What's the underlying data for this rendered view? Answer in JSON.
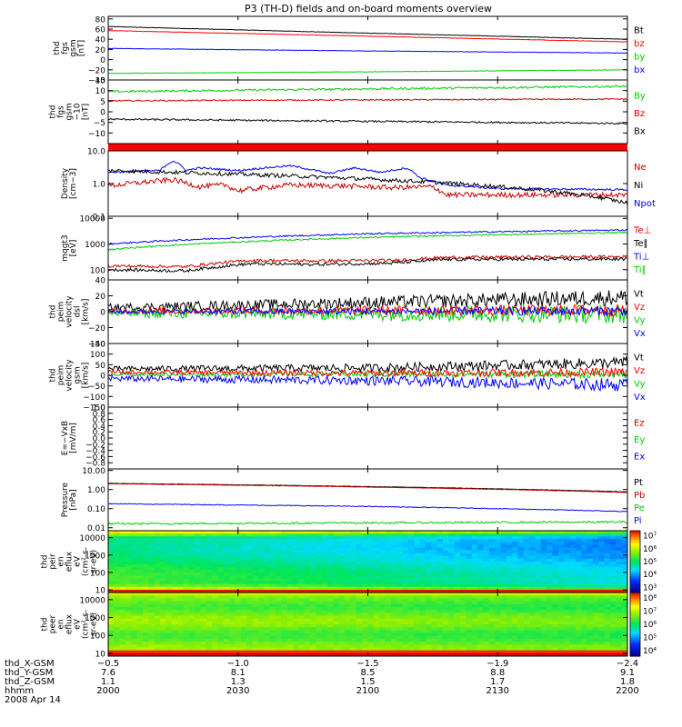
{
  "chart_data": {
    "type": "line",
    "title": "P3 (TH-D) fields and on-board moments overview",
    "panels": [
      {
        "id": "fgs-gsm",
        "ylabel": [
          "thd",
          "fgs",
          "gsm",
          "[nT]"
        ],
        "ylim": [
          -40,
          85
        ],
        "scale": "linear",
        "yticks": [
          "80",
          "60",
          "40",
          "20",
          "0",
          "−20",
          "−40"
        ],
        "ytick_values": [
          80,
          60,
          40,
          20,
          0,
          -20,
          -40
        ],
        "legend": [
          {
            "label": "Bt",
            "color": "#000000"
          },
          {
            "label": "bz",
            "color": "#ff0000"
          },
          {
            "label": "by",
            "color": "#00cc00"
          },
          {
            "label": "bx",
            "color": "#0000ff"
          }
        ],
        "series": [
          {
            "label": "Bt",
            "color": "#000000",
            "x": [
              2000,
              2100,
              2200
            ],
            "y": [
              65,
              52,
              40
            ],
            "noise": 0.4
          },
          {
            "label": "bz",
            "color": "#ff0000",
            "x": [
              2000,
              2100,
              2200
            ],
            "y": [
              57,
              46,
              35
            ],
            "noise": 0.4
          },
          {
            "label": "bx",
            "color": "#0000ff",
            "x": [
              2000,
              2100,
              2200
            ],
            "y": [
              22,
              17,
              13
            ],
            "noise": 0.4
          },
          {
            "label": "by",
            "color": "#00cc00",
            "x": [
              2000,
              2100,
              2200
            ],
            "y": [
              -27,
              -24,
              -20
            ],
            "noise": 0.4
          }
        ]
      },
      {
        "id": "fgs-gse",
        "ylabel": [
          "thd",
          "fgs",
          "gsm",
          "−10",
          "[nT]"
        ],
        "ylim": [
          -15,
          15
        ],
        "scale": "linear",
        "yticks": [
          "15",
          "10",
          "5",
          "0",
          "−5",
          "−10"
        ],
        "ytick_values": [
          15,
          10,
          5,
          0,
          -5,
          -10
        ],
        "legend": [
          {
            "label": "By",
            "color": "#00cc00"
          },
          {
            "label": "Bz",
            "color": "#cc0000"
          },
          {
            "label": "Bx",
            "color": "#000000"
          }
        ],
        "series": [
          {
            "label": "By",
            "color": "#00cc00",
            "x": [
              2000,
              2100,
              2200
            ],
            "y": [
              9.5,
              10.8,
              12
            ],
            "noise": 0.5
          },
          {
            "label": "Bz",
            "color": "#cc0000",
            "x": [
              2000,
              2100,
              2200
            ],
            "y": [
              5.2,
              5.6,
              6
            ],
            "noise": 0.3
          },
          {
            "label": "Bx",
            "color": "#000000",
            "x": [
              2000,
              2100,
              2200
            ],
            "y": [
              -3.5,
              -4.5,
              -5.5
            ],
            "noise": 0.4
          }
        ]
      },
      {
        "id": "density",
        "ylabel": [
          "Density",
          "[cm−3]"
        ],
        "ylim": [
          0.1,
          10
        ],
        "scale": "log",
        "yticks": [
          "10.0",
          "1.0",
          "0.1"
        ],
        "ytick_values": [
          10,
          1,
          0.1
        ],
        "legend": [
          {
            "label": "Ne",
            "color": "#cc0000"
          },
          {
            "label": "Ni",
            "color": "#000000"
          },
          {
            "label": "Npot",
            "color": "#0000ff"
          }
        ],
        "series": [
          {
            "label": "Npot",
            "color": "#0000ff",
            "x": [
              2000,
              2020,
              2025,
              2030,
              2035,
              2050,
              2070,
              2085,
              2095,
              2105,
              2115,
              2120,
              2130,
              2150,
              2200
            ],
            "y": [
              2.2,
              2.5,
              5,
              2.5,
              3,
              2.5,
              3.5,
              2,
              3,
              2.2,
              3,
              1.5,
              0.9,
              0.7,
              0.65
            ],
            "noise": 0.03
          },
          {
            "label": "Ne",
            "color": "#cc0000",
            "x": [
              2000,
              2025,
              2035,
              2045,
              2050,
              2070,
              2090,
              2110,
              2125,
              2130,
              2200
            ],
            "y": [
              0.85,
              1.3,
              0.8,
              0.9,
              0.6,
              0.9,
              0.85,
              0.75,
              0.8,
              0.45,
              0.45
            ],
            "noise": 0.08
          },
          {
            "label": "Ni",
            "color": "#000000",
            "x": [
              2000,
              2200
            ],
            "y": [
              2.5,
              0.25
            ],
            "noise": 0.06
          }
        ]
      },
      {
        "id": "temperature",
        "ylabel": [
          "mqgt3",
          "[eV]"
        ],
        "ylim": [
          40,
          12000
        ],
        "scale": "log",
        "yticks": [
          "10000",
          "1000",
          "100"
        ],
        "ytick_values": [
          10000,
          1000,
          100
        ],
        "legend": [
          {
            "label": "Te⊥",
            "color": "#cc0000"
          },
          {
            "label": "Te∥",
            "color": "#000000"
          },
          {
            "label": "Ti⊥",
            "color": "#0000ff"
          },
          {
            "label": "Ti∥",
            "color": "#00cc00"
          }
        ],
        "series": [
          {
            "label": "Ti⊥",
            "color": "#0000ff",
            "x": [
              2000,
              2100,
              2200
            ],
            "y": [
              1000,
              2500,
              3500
            ],
            "noise": 0.03
          },
          {
            "label": "Ti∥",
            "color": "#00cc00",
            "x": [
              2000,
              2100,
              2200
            ],
            "y": [
              600,
              1800,
              2800
            ],
            "noise": 0.03
          },
          {
            "label": "Te⊥",
            "color": "#cc0000",
            "x": [
              2000,
              2030,
              2055,
              2080,
              2110,
              2130,
              2200
            ],
            "y": [
              140,
              130,
              230,
              220,
              230,
              300,
              320
            ],
            "noise": 0.06
          },
          {
            "label": "Te∥",
            "color": "#000000",
            "x": [
              2000,
              2030,
              2055,
              2080,
              2110,
              2130,
              2200
            ],
            "y": [
              100,
              90,
              170,
              160,
              180,
              250,
              260
            ],
            "noise": 0.06
          }
        ]
      },
      {
        "id": "velocity-dsl",
        "ylabel": [
          "thd",
          "peim",
          "velocity",
          "dsl",
          "[km/s]"
        ],
        "ylim": [
          -40,
          40
        ],
        "scale": "linear",
        "yticks": [
          "40",
          "20",
          "0",
          "−20",
          "−40"
        ],
        "ytick_values": [
          40,
          20,
          0,
          -20,
          -40
        ],
        "legend": [
          {
            "label": "Vt",
            "color": "#000000"
          },
          {
            "label": "Vz",
            "color": "#ff0000"
          },
          {
            "label": "Vy",
            "color": "#00cc00"
          },
          {
            "label": "Vx",
            "color": "#0000ff"
          }
        ],
        "series": [
          {
            "label": "Vt",
            "color": "#000000",
            "x": [
              2000,
              2200
            ],
            "y": [
              5,
              18
            ],
            "noise": 7
          },
          {
            "label": "Vy",
            "color": "#00cc00",
            "x": [
              2000,
              2200
            ],
            "y": [
              -2,
              -3
            ],
            "noise": 8
          },
          {
            "label": "Vz",
            "color": "#ff0000",
            "x": [
              2000,
              2200
            ],
            "y": [
              1,
              2
            ],
            "noise": 5
          },
          {
            "label": "Vx",
            "color": "#0000ff",
            "x": [
              2000,
              2200
            ],
            "y": [
              0,
              1
            ],
            "noise": 4
          }
        ]
      },
      {
        "id": "velocity-gsm",
        "ylabel": [
          "thd",
          "peim",
          "velocity",
          "gsm",
          "[km/s]"
        ],
        "ylim": [
          -150,
          150
        ],
        "scale": "linear",
        "yticks": [
          "150",
          "100",
          "50",
          "0",
          "−50",
          "−100",
          "−150"
        ],
        "ytick_values": [
          150,
          100,
          50,
          0,
          -50,
          -100,
          -150
        ],
        "legend": [
          {
            "label": "Vt",
            "color": "#000000"
          },
          {
            "label": "Vz",
            "color": "#ff0000"
          },
          {
            "label": "Vy",
            "color": "#00cc00"
          },
          {
            "label": "Vx",
            "color": "#0000ff"
          }
        ],
        "series": [
          {
            "label": "Vt",
            "color": "#000000",
            "x": [
              2000,
              2100,
              2200
            ],
            "y": [
              30,
              35,
              60
            ],
            "noise": 18
          },
          {
            "label": "Vx",
            "color": "#0000ff",
            "x": [
              2000,
              2100,
              2200
            ],
            "y": [
              -15,
              -25,
              -45
            ],
            "noise": 20
          },
          {
            "label": "Vy",
            "color": "#00cc00",
            "x": [
              2000,
              2100,
              2200
            ],
            "y": [
              5,
              5,
              5
            ],
            "noise": 12
          },
          {
            "label": "Vz",
            "color": "#ff0000",
            "x": [
              2000,
              2100,
              2200
            ],
            "y": [
              15,
              10,
              15
            ],
            "noise": 14
          }
        ]
      },
      {
        "id": "efield",
        "ylabel": [
          "E=−VxB",
          "[mV/m]"
        ],
        "ylim": [
          -1,
          1
        ],
        "scale": "linear",
        "yticks": [
          "1.0",
          "0.8",
          "0.6",
          "0.4",
          "0.2",
          "0.0",
          "−0.2",
          "−0.4",
          "−0.6",
          "−0.8"
        ],
        "ytick_values": [
          1,
          0.8,
          0.6,
          0.4,
          0.2,
          0,
          -0.2,
          -0.4,
          -0.6,
          -0.8
        ],
        "legend": [
          {
            "label": "Ez",
            "color": "#cc0000"
          },
          {
            "label": "Ey",
            "color": "#00cc00"
          },
          {
            "label": "Ex",
            "color": "#0000ff"
          }
        ],
        "series": []
      },
      {
        "id": "pressure",
        "ylabel": [
          "Pressure",
          "[nPa]"
        ],
        "ylim": [
          0.007,
          12
        ],
        "scale": "log",
        "yticks": [
          "10.00",
          "1.00",
          "0.10",
          "0.01"
        ],
        "ytick_values": [
          10,
          1,
          0.1,
          0.01
        ],
        "legend": [
          {
            "label": "Pt",
            "color": "#000000"
          },
          {
            "label": "Pb",
            "color": "#cc0000"
          },
          {
            "label": "Pe",
            "color": "#00cc00"
          },
          {
            "label": "Pi",
            "color": "#0000ff"
          }
        ],
        "series": [
          {
            "label": "Pt",
            "color": "#000000",
            "x": [
              2000,
              2200
            ],
            "y": [
              2.1,
              0.75
            ],
            "noise": 0.01
          },
          {
            "label": "Pb",
            "color": "#cc0000",
            "x": [
              2000,
              2200
            ],
            "y": [
              2.0,
              0.7
            ],
            "noise": 0.01
          },
          {
            "label": "Pi",
            "color": "#0000ff",
            "x": [
              2000,
              2100,
              2200
            ],
            "y": [
              0.18,
              0.13,
              0.07
            ],
            "noise": 0.02
          },
          {
            "label": "Pe",
            "color": "#00cc00",
            "x": [
              2000,
              2100,
              2200
            ],
            "y": [
              0.016,
              0.018,
              0.02
            ],
            "noise": 0.05
          }
        ]
      },
      {
        "id": "ion-eflux",
        "type": "heatmap",
        "ylabel": [
          "thd",
          "peir",
          "en",
          "eflux",
          "eV",
          "(cm²-s-",
          "sr-eV)"
        ],
        "ylim": [
          7,
          25000
        ],
        "scale": "log",
        "yticks": [
          "10000",
          "1000",
          "100",
          "10"
        ],
        "ytick_values": [
          10000,
          1000,
          100,
          10
        ],
        "colorbar": {
          "ticks": [
            "10⁷",
            "10⁶",
            "10⁵",
            "10⁴",
            "10³"
          ],
          "tick_values": [
            7,
            6,
            5,
            4,
            3
          ],
          "range": [
            2.6,
            7.4
          ]
        }
      },
      {
        "id": "electron-eflux",
        "type": "heatmap",
        "ylabel": [
          "thd",
          "peer",
          "en",
          "eflux",
          "eV",
          "(cm²-s-",
          "sr-eV)"
        ],
        "ylim": [
          7,
          25000
        ],
        "scale": "log",
        "yticks": [
          "10000",
          "1000",
          "100",
          "10"
        ],
        "ytick_values": [
          10000,
          1000,
          100,
          10
        ],
        "colorbar": {
          "ticks": [
            "10⁸",
            "10⁷",
            "10⁶",
            "10⁵",
            "10⁴"
          ],
          "tick_values": [
            8,
            7,
            6,
            5,
            4
          ],
          "range": [
            3.6,
            8.4
          ]
        }
      }
    ],
    "xaxis": {
      "range": [
        2000,
        2200
      ],
      "tick_values": [
        2000,
        2050,
        2100,
        2150,
        2200
      ],
      "rows": [
        {
          "label": "thd_X-GSM",
          "values": [
            "−0.5",
            "−1.0",
            "−1.5",
            "−1.9",
            "−2.4"
          ]
        },
        {
          "label": "thd_Y-GSM",
          "values": [
            "7.6",
            "8.1",
            "8.5",
            "8.8",
            "9.1"
          ]
        },
        {
          "label": "thd_Z-GSM",
          "values": [
            "1.1",
            "1.3",
            "1.5",
            "1.7",
            "1.8"
          ]
        },
        {
          "label": "hhmm",
          "values": [
            "2000",
            "2030",
            "2100",
            "2130",
            "2200"
          ]
        }
      ],
      "date": "2008 Apr 14"
    }
  }
}
